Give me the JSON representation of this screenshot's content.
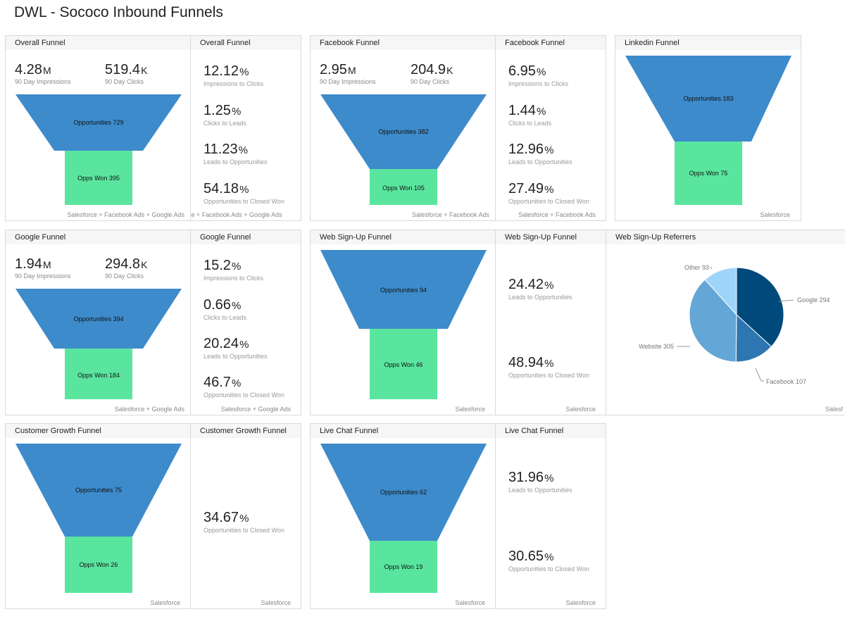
{
  "page": {
    "title": "DWL - Sococo Inbound Funnels"
  },
  "colors": {
    "top_stage": "#3d8bcb",
    "bottom_stage": "#5ae59f",
    "pie": [
      "#00497b",
      "#2d76b1",
      "#64a6d6",
      "#9fd4f9"
    ]
  },
  "overall": {
    "funnel": {
      "title": "Overall Funnel",
      "impressions": "4.28",
      "impressions_unit": "M",
      "impressions_label": "90 Day Impressions",
      "clicks": "519.4",
      "clicks_unit": "K",
      "clicks_label": "90 Day Clicks",
      "top_label": "Opportunities 729",
      "bottom_label": "Opps Won 395",
      "source": "Salesforce + Facebook Ads + Google Ads"
    },
    "rates": {
      "title": "Overall Funnel",
      "items": [
        {
          "value": "12.12",
          "unit": "%",
          "label": "Impressions to Clicks"
        },
        {
          "value": "1.25",
          "unit": "%",
          "label": "Clicks to Leads"
        },
        {
          "value": "11.23",
          "unit": "%",
          "label": "Leads to Opportunities"
        },
        {
          "value": "54.18",
          "unit": "%",
          "label": "Opportunities to Closed Won"
        }
      ],
      "source": "orce + Facebook Ads + Google Ads"
    }
  },
  "facebook": {
    "funnel": {
      "title": "Facebook Funnel",
      "impressions": "2.95",
      "impressions_unit": "M",
      "impressions_label": "90 Day Impressions",
      "clicks": "204.9",
      "clicks_unit": "K",
      "clicks_label": "90 Day Clicks",
      "top_label": "Opportunities 382",
      "bottom_label": "Opps Won 105",
      "source": "Salesforce + Facebook Ads"
    },
    "rates": {
      "title": "Facebook Funnel",
      "items": [
        {
          "value": "6.95",
          "unit": "%",
          "label": "Impressions to Clicks"
        },
        {
          "value": "1.44",
          "unit": "%",
          "label": "Clicks to Leads"
        },
        {
          "value": "12.96",
          "unit": "%",
          "label": "Leads to Opportunities"
        },
        {
          "value": "27.49",
          "unit": "%",
          "label": "Opportunities to Closed Won"
        }
      ],
      "source": "Salesforce + Facebook Ads"
    }
  },
  "linkedin": {
    "funnel": {
      "title": "Linkedin Funnel",
      "top_label": "Opportunities 183",
      "bottom_label": "Opps Won 75",
      "source": "Salesforce"
    }
  },
  "google": {
    "funnel": {
      "title": "Google Funnel",
      "impressions": "1.94",
      "impressions_unit": "M",
      "impressions_label": "90 Day Impressions",
      "clicks": "294.8",
      "clicks_unit": "K",
      "clicks_label": "90 Day Clicks",
      "top_label": "Opportunities 394",
      "bottom_label": "Opps Won 184",
      "source": "Salesforce + Google Ads"
    },
    "rates": {
      "title": "Google Funnel",
      "items": [
        {
          "value": "15.2",
          "unit": "%",
          "label": "Impressions to Clicks"
        },
        {
          "value": "0.66",
          "unit": "%",
          "label": "Clicks to Leads"
        },
        {
          "value": "20.24",
          "unit": "%",
          "label": "Leads to Opportunities"
        },
        {
          "value": "46.7",
          "unit": "%",
          "label": "Opportunities to Closed Won"
        }
      ],
      "source": "Salesforce + Google Ads"
    }
  },
  "web_signup": {
    "funnel": {
      "title": "Web Sign-Up Funnel",
      "top_label": "Opportunities 94",
      "bottom_label": "Opps Won 46",
      "source": "Salesforce"
    },
    "rates": {
      "title": "Web Sign-Up Funnel",
      "items": [
        {
          "value": "24.42",
          "unit": "%",
          "label": "Leads to Opportunities"
        },
        {
          "value": "48.94",
          "unit": "%",
          "label": "Opportunities to Closed Won"
        }
      ],
      "source": "Salesforce"
    }
  },
  "referrers": {
    "title": "Web Sign-Up Referrers",
    "source": "Salesf",
    "labels": [
      "Google 294",
      "Facebook 107",
      "Website 305",
      "Other 93"
    ]
  },
  "customer_growth": {
    "funnel": {
      "title": "Customer Growth Funnel",
      "top_label": "Opportunities 75",
      "bottom_label": "Opps Won 26",
      "source": "Salesforce"
    },
    "rates": {
      "title": "Customer Growth Funnel",
      "items": [
        {
          "value": "34.67",
          "unit": "%",
          "label": "Opportunities to Closed Won"
        }
      ],
      "source": "Salesforce"
    }
  },
  "live_chat": {
    "funnel": {
      "title": "Live Chat Funnel",
      "top_label": "Opportunities 62",
      "bottom_label": "Opps Won 19",
      "source": "Salesforce"
    },
    "rates": {
      "title": "Live Chat Funnel",
      "items": [
        {
          "value": "31.96",
          "unit": "%",
          "label": "Leads to Opportunities"
        },
        {
          "value": "30.65",
          "unit": "%",
          "label": "Opportunities to Closed Won"
        }
      ],
      "source": "Salesforce"
    }
  },
  "chart_data": [
    {
      "type": "funnel",
      "title": "Overall Funnel",
      "categories": [
        "Opportunities",
        "Opps Won"
      ],
      "values": [
        729,
        395
      ]
    },
    {
      "type": "funnel",
      "title": "Facebook Funnel",
      "categories": [
        "Opportunities",
        "Opps Won"
      ],
      "values": [
        382,
        105
      ]
    },
    {
      "type": "funnel",
      "title": "Linkedin Funnel",
      "categories": [
        "Opportunities",
        "Opps Won"
      ],
      "values": [
        183,
        75
      ]
    },
    {
      "type": "funnel",
      "title": "Google Funnel",
      "categories": [
        "Opportunities",
        "Opps Won"
      ],
      "values": [
        394,
        184
      ]
    },
    {
      "type": "funnel",
      "title": "Web Sign-Up Funnel",
      "categories": [
        "Opportunities",
        "Opps Won"
      ],
      "values": [
        94,
        46
      ]
    },
    {
      "type": "pie",
      "title": "Web Sign-Up Referrers",
      "categories": [
        "Google",
        "Facebook",
        "Website",
        "Other"
      ],
      "values": [
        294,
        107,
        305,
        93
      ]
    },
    {
      "type": "funnel",
      "title": "Customer Growth Funnel",
      "categories": [
        "Opportunities",
        "Opps Won"
      ],
      "values": [
        75,
        26
      ]
    },
    {
      "type": "funnel",
      "title": "Live Chat Funnel",
      "categories": [
        "Opportunities",
        "Opps Won"
      ],
      "values": [
        62,
        19
      ]
    }
  ]
}
